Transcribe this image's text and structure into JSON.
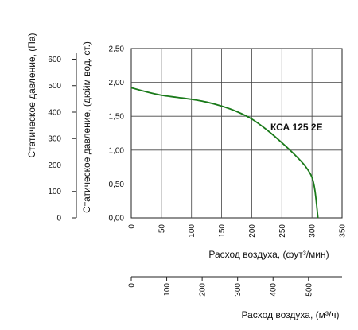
{
  "chart_data": {
    "type": "line",
    "series": [
      {
        "name": "КСА 125 2E",
        "color": "#1a7a1a",
        "x": [
          0,
          25,
          50,
          75,
          100,
          125,
          150,
          175,
          200,
          225,
          250,
          275,
          290,
          300,
          305,
          310
        ],
        "y": [
          1.92,
          1.86,
          1.81,
          1.78,
          1.75,
          1.71,
          1.65,
          1.57,
          1.46,
          1.3,
          1.11,
          0.9,
          0.75,
          0.6,
          0.4,
          0.0
        ]
      }
    ],
    "x_axis": {
      "label": "Расход воздуха, (фут³/мин)",
      "lim": [
        0,
        350
      ],
      "ticks": [
        "0",
        "50",
        "100",
        "150",
        "200",
        "250",
        "300",
        "350"
      ]
    },
    "y_axis": {
      "label": "Статическое давление, (дюйм вод. ст.)",
      "lim": [
        0,
        2.5
      ],
      "ticks": [
        "0,00",
        "0,50",
        "1,00",
        "1,50",
        "2,00",
        "2,50"
      ]
    },
    "y2_axis": {
      "label": "Статическое давление, (Па)",
      "lim": [
        0,
        622.5
      ],
      "ticks": [
        "0",
        "100",
        "200",
        "300",
        "400",
        "500",
        "600"
      ]
    },
    "x2_axis": {
      "label": "Расход воздуха, (м³/ч)",
      "lim": [
        0,
        594.7
      ],
      "ticks": [
        "0",
        "100",
        "200",
        "300",
        "400",
        "500"
      ]
    },
    "grid": true
  }
}
